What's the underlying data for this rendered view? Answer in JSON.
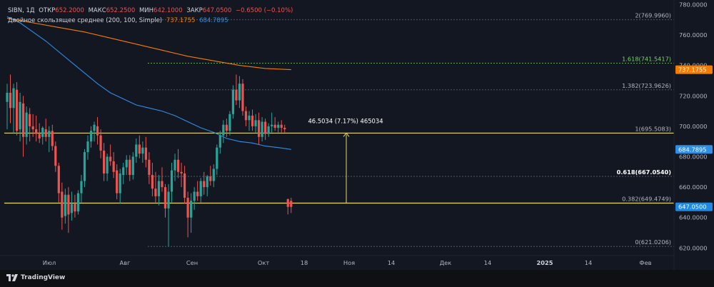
{
  "legend": {
    "symbol": "SIBN, 1Д",
    "open_label": "ОТКР",
    "open": "652.2000",
    "high_label": "МАКС",
    "high": "652.2500",
    "low_label": "МИН",
    "low": "642.1000",
    "close_label": "ЗАКР",
    "close": "647.0500",
    "change": "−0.6500 (−0.10%)",
    "ma_title": "Двойное скользящее среднее (200, 100, Simple)",
    "ma_value1": "737.1755",
    "ma_value2": "684.7895"
  },
  "colors": {
    "up": "#26a69a",
    "down": "#ef5350",
    "ma200": "#f57c00",
    "ma100": "#2f8ee5",
    "fib": "#e8d86a",
    "fib_green": "#7cd36b",
    "background": "#131722"
  },
  "fib_levels": [
    {
      "label": "0(621.0206)",
      "value": 621.0206
    },
    {
      "label": "0.382(649.4749)",
      "value": 649.4749
    },
    {
      "label": "0.618(667.0540)",
      "value": 667.054
    },
    {
      "label": "1(695.5083)",
      "value": 695.5083
    },
    {
      "label": "1.382(723.9626)",
      "value": 723.9626
    },
    {
      "label": "1.618(741.5417)",
      "value": 741.5417
    },
    {
      "label": "2(769.9960)",
      "value": 769.996
    }
  ],
  "measure_label": "46.5034 (7.17%) 465034",
  "price_badges": {
    "ma200": "737.1755",
    "ma100": "684.7895",
    "last": "647.0500"
  },
  "footer": {
    "logo": "TradingView"
  },
  "chart_data": {
    "type": "candlestick",
    "ylim": [
      615,
      783
    ],
    "y_ticks": [
      "620.0000",
      "640.0000",
      "660.0000",
      "680.0000",
      "700.0000",
      "720.0000",
      "740.0000",
      "760.0000",
      "780.0000"
    ],
    "x_ticks": [
      "Июл",
      "Авг",
      "Сен",
      "Окт",
      "18",
      "Ноя",
      "14",
      "Дек",
      "14",
      "2025",
      "14",
      "Фев"
    ],
    "candles": [
      {
        "o": 716,
        "h": 728,
        "l": 698,
        "c": 722
      },
      {
        "o": 722,
        "h": 734,
        "l": 702,
        "c": 712
      },
      {
        "o": 712,
        "h": 728,
        "l": 695,
        "c": 725
      },
      {
        "o": 724,
        "h": 729,
        "l": 694,
        "c": 697
      },
      {
        "o": 698,
        "h": 722,
        "l": 690,
        "c": 716
      },
      {
        "o": 715,
        "h": 720,
        "l": 680,
        "c": 693
      },
      {
        "o": 693,
        "h": 713,
        "l": 688,
        "c": 709
      },
      {
        "o": 708,
        "h": 712,
        "l": 690,
        "c": 700
      },
      {
        "o": 700,
        "h": 708,
        "l": 693,
        "c": 698
      },
      {
        "o": 698,
        "h": 707,
        "l": 690,
        "c": 695
      },
      {
        "o": 695,
        "h": 702,
        "l": 689,
        "c": 692
      },
      {
        "o": 693,
        "h": 700,
        "l": 688,
        "c": 699
      },
      {
        "o": 698,
        "h": 705,
        "l": 690,
        "c": 693
      },
      {
        "o": 693,
        "h": 700,
        "l": 683,
        "c": 697
      },
      {
        "o": 697,
        "h": 701,
        "l": 684,
        "c": 687
      },
      {
        "o": 687,
        "h": 690,
        "l": 670,
        "c": 674
      },
      {
        "o": 674,
        "h": 676,
        "l": 650,
        "c": 656
      },
      {
        "o": 657,
        "h": 663,
        "l": 632,
        "c": 640
      },
      {
        "o": 641,
        "h": 659,
        "l": 636,
        "c": 655
      },
      {
        "o": 655,
        "h": 660,
        "l": 630,
        "c": 642
      },
      {
        "o": 643,
        "h": 657,
        "l": 638,
        "c": 649
      },
      {
        "o": 649,
        "h": 655,
        "l": 640,
        "c": 644
      },
      {
        "o": 644,
        "h": 658,
        "l": 642,
        "c": 656
      },
      {
        "o": 656,
        "h": 668,
        "l": 650,
        "c": 664
      },
      {
        "o": 664,
        "h": 685,
        "l": 660,
        "c": 683
      },
      {
        "o": 683,
        "h": 694,
        "l": 678,
        "c": 690
      },
      {
        "o": 690,
        "h": 700,
        "l": 686,
        "c": 697
      },
      {
        "o": 697,
        "h": 703,
        "l": 690,
        "c": 701
      },
      {
        "o": 700,
        "h": 706,
        "l": 688,
        "c": 694
      },
      {
        "o": 694,
        "h": 698,
        "l": 679,
        "c": 684
      },
      {
        "o": 684,
        "h": 689,
        "l": 664,
        "c": 669
      },
      {
        "o": 669,
        "h": 682,
        "l": 664,
        "c": 680
      },
      {
        "o": 680,
        "h": 688,
        "l": 674,
        "c": 677
      },
      {
        "o": 677,
        "h": 683,
        "l": 666,
        "c": 670
      },
      {
        "o": 671,
        "h": 675,
        "l": 652,
        "c": 656
      },
      {
        "o": 656,
        "h": 672,
        "l": 649,
        "c": 669
      },
      {
        "o": 668,
        "h": 676,
        "l": 662,
        "c": 673
      },
      {
        "o": 673,
        "h": 681,
        "l": 668,
        "c": 678
      },
      {
        "o": 678,
        "h": 681,
        "l": 664,
        "c": 668
      },
      {
        "o": 668,
        "h": 683,
        "l": 665,
        "c": 680
      },
      {
        "o": 680,
        "h": 692,
        "l": 676,
        "c": 688
      },
      {
        "o": 688,
        "h": 694,
        "l": 679,
        "c": 682
      },
      {
        "o": 682,
        "h": 690,
        "l": 676,
        "c": 686
      },
      {
        "o": 686,
        "h": 693,
        "l": 673,
        "c": 678
      },
      {
        "o": 678,
        "h": 683,
        "l": 662,
        "c": 668
      },
      {
        "o": 668,
        "h": 676,
        "l": 654,
        "c": 659
      },
      {
        "o": 659,
        "h": 670,
        "l": 650,
        "c": 654
      },
      {
        "o": 654,
        "h": 668,
        "l": 648,
        "c": 664
      },
      {
        "o": 664,
        "h": 673,
        "l": 657,
        "c": 660
      },
      {
        "o": 660,
        "h": 662,
        "l": 640,
        "c": 646
      },
      {
        "o": 646,
        "h": 662,
        "l": 621,
        "c": 657
      },
      {
        "o": 657,
        "h": 676,
        "l": 650,
        "c": 671
      },
      {
        "o": 671,
        "h": 682,
        "l": 664,
        "c": 678
      },
      {
        "o": 678,
        "h": 685,
        "l": 666,
        "c": 670
      },
      {
        "o": 670,
        "h": 676,
        "l": 660,
        "c": 669
      },
      {
        "o": 669,
        "h": 674,
        "l": 649,
        "c": 653
      },
      {
        "o": 653,
        "h": 657,
        "l": 627,
        "c": 640
      },
      {
        "o": 640,
        "h": 656,
        "l": 630,
        "c": 651
      },
      {
        "o": 651,
        "h": 660,
        "l": 645,
        "c": 657
      },
      {
        "o": 657,
        "h": 664,
        "l": 651,
        "c": 654
      },
      {
        "o": 654,
        "h": 666,
        "l": 650,
        "c": 664
      },
      {
        "o": 664,
        "h": 670,
        "l": 655,
        "c": 660
      },
      {
        "o": 660,
        "h": 668,
        "l": 654,
        "c": 667
      },
      {
        "o": 667,
        "h": 674,
        "l": 661,
        "c": 664
      },
      {
        "o": 664,
        "h": 675,
        "l": 660,
        "c": 672
      },
      {
        "o": 672,
        "h": 688,
        "l": 668,
        "c": 686
      },
      {
        "o": 686,
        "h": 697,
        "l": 682,
        "c": 694
      },
      {
        "o": 694,
        "h": 704,
        "l": 689,
        "c": 701
      },
      {
        "o": 701,
        "h": 705,
        "l": 693,
        "c": 697
      },
      {
        "o": 697,
        "h": 710,
        "l": 694,
        "c": 708
      },
      {
        "o": 708,
        "h": 727,
        "l": 705,
        "c": 724
      },
      {
        "o": 724,
        "h": 734,
        "l": 714,
        "c": 717
      },
      {
        "o": 717,
        "h": 733,
        "l": 712,
        "c": 728
      },
      {
        "o": 728,
        "h": 731,
        "l": 707,
        "c": 710
      },
      {
        "o": 710,
        "h": 713,
        "l": 700,
        "c": 704
      },
      {
        "o": 704,
        "h": 710,
        "l": 697,
        "c": 707
      },
      {
        "o": 707,
        "h": 711,
        "l": 697,
        "c": 700
      },
      {
        "o": 700,
        "h": 708,
        "l": 696,
        "c": 704
      },
      {
        "o": 704,
        "h": 709,
        "l": 688,
        "c": 693
      },
      {
        "o": 693,
        "h": 706,
        "l": 690,
        "c": 703
      },
      {
        "o": 703,
        "h": 705,
        "l": 691,
        "c": 695
      },
      {
        "o": 695,
        "h": 702,
        "l": 693,
        "c": 700
      },
      {
        "o": 700,
        "h": 709,
        "l": 696,
        "c": 701
      },
      {
        "o": 701,
        "h": 706,
        "l": 697,
        "c": 699
      },
      {
        "o": 699,
        "h": 703,
        "l": 696,
        "c": 701
      },
      {
        "o": 701,
        "h": 704,
        "l": 696,
        "c": 699
      },
      {
        "o": 699,
        "h": 701,
        "l": 696,
        "c": 698
      },
      {
        "o": 652.2,
        "h": 652.25,
        "l": 642.1,
        "c": 647.05
      },
      {
        "o": 651,
        "h": 653,
        "l": 643,
        "c": 647
      }
    ],
    "ma200": [
      [
        0,
        771
      ],
      [
        8,
        768
      ],
      [
        16,
        765
      ],
      [
        24,
        762
      ],
      [
        32,
        758
      ],
      [
        40,
        754
      ],
      [
        48,
        750
      ],
      [
        56,
        746
      ],
      [
        64,
        743
      ],
      [
        72,
        740
      ],
      [
        80,
        738
      ],
      [
        88,
        737.2
      ]
    ],
    "ma100": [
      [
        0,
        772
      ],
      [
        4,
        768
      ],
      [
        8,
        762
      ],
      [
        12,
        756
      ],
      [
        16,
        749
      ],
      [
        20,
        742
      ],
      [
        24,
        735
      ],
      [
        28,
        728
      ],
      [
        32,
        722
      ],
      [
        36,
        718
      ],
      [
        40,
        714
      ],
      [
        44,
        712
      ],
      [
        48,
        710
      ],
      [
        52,
        707
      ],
      [
        56,
        703
      ],
      [
        60,
        699
      ],
      [
        64,
        696
      ],
      [
        68,
        692
      ],
      [
        72,
        690
      ],
      [
        76,
        689
      ],
      [
        80,
        687
      ],
      [
        84,
        686
      ],
      [
        88,
        684.8
      ]
    ]
  }
}
